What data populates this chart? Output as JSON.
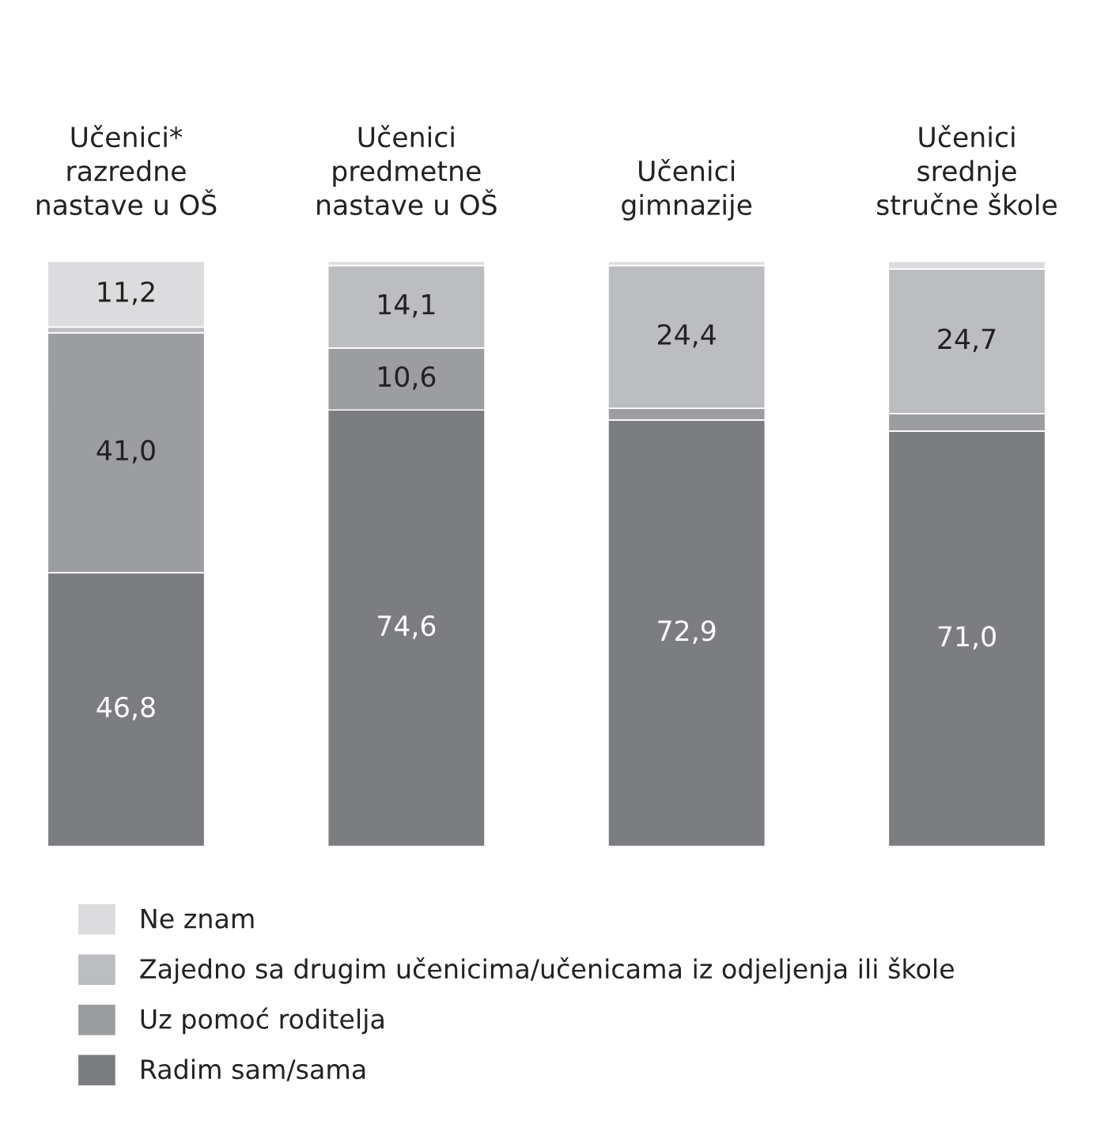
{
  "chart_data": {
    "type": "bar",
    "stacked": true,
    "categories": [
      "Učenici*\nrazredne\nnastave u OŠ",
      "Učenici\npredmetne\nnastave u OŠ",
      "Učenici\ngimnazije",
      "Učenici\nsrednje\nstručne škole"
    ],
    "series": [
      {
        "name": "Radim sam/sama",
        "color": "#7c7d81",
        "values": [
          46.8,
          74.6,
          72.9,
          71.0
        ],
        "value_labels": [
          "46,8",
          "74,6",
          "72,9",
          "71,0"
        ]
      },
      {
        "name": "Uz pomoć roditelja",
        "color": "#9c9da1",
        "values": [
          41.0,
          10.6,
          2.0,
          3.0
        ],
        "value_labels": [
          "41,0",
          "10,6",
          null,
          null
        ]
      },
      {
        "name": "Zajedno sa drugim učenicima/učenicama iz odjeljenja ili škole",
        "color": "#bcbdc1",
        "values": [
          1.0,
          14.1,
          24.4,
          24.7
        ],
        "value_labels": [
          null,
          "14,1",
          "24,4",
          "24,7"
        ]
      },
      {
        "name": "Ne znam",
        "color": "#dcdcde",
        "values": [
          11.2,
          0.7,
          0.7,
          1.3
        ],
        "value_labels": [
          "11,2",
          null,
          null,
          null
        ]
      }
    ],
    "legend": "bottom"
  }
}
